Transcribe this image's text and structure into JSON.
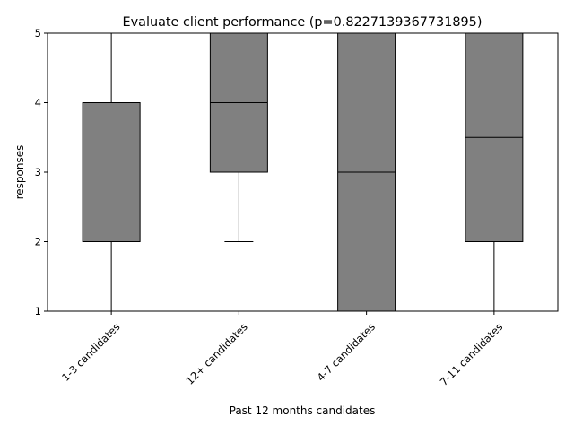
{
  "chart_data": {
    "type": "boxplot",
    "title": "Evaluate client performance (p=0.8227139367731895)",
    "xlabel": "Past 12 months candidates",
    "ylabel": "responses",
    "ylim": [
      1,
      5
    ],
    "yticks": [
      "1",
      "2",
      "3",
      "4",
      "5"
    ],
    "grid": false,
    "legend": "none",
    "categories": [
      "1-3 candidates",
      "12+ candidates",
      "4-7 candidates",
      "7-11 candidates"
    ],
    "boxes": [
      {
        "category": "1-3 candidates",
        "whisker_low": 1,
        "q1": 2,
        "median": 2,
        "q3": 4,
        "whisker_high": 5
      },
      {
        "category": "12+ candidates",
        "whisker_low": 2,
        "q1": 3,
        "median": 4,
        "q3": 5,
        "whisker_high": 5
      },
      {
        "category": "4-7 candidates",
        "whisker_low": 1,
        "q1": 1,
        "median": 3,
        "q3": 5,
        "whisker_high": 5
      },
      {
        "category": "7-11 candidates",
        "whisker_low": 1,
        "q1": 2,
        "median": 3.5,
        "q3": 5,
        "whisker_high": 5
      }
    ],
    "box_color": "#808080",
    "line_color": "#000000"
  }
}
